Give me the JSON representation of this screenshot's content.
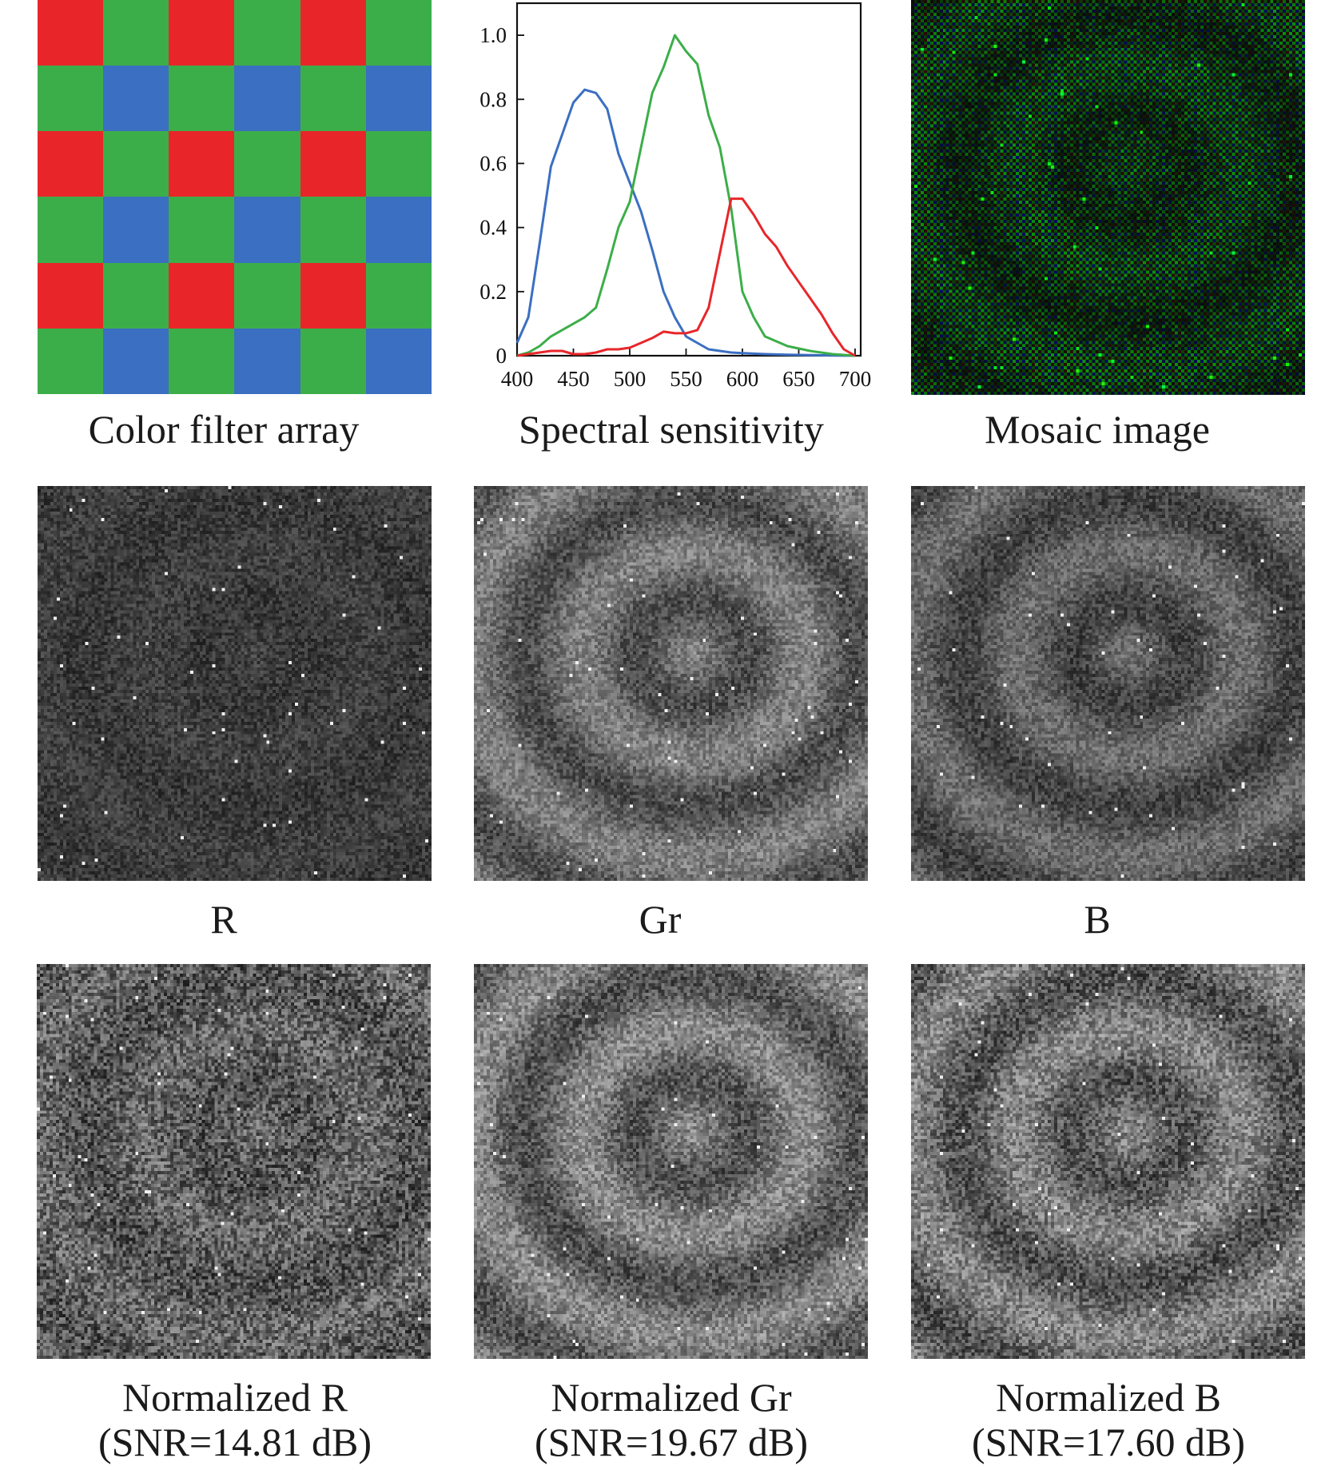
{
  "figure": {
    "colors": {
      "red": "#e8262a",
      "green": "#3cae49",
      "blue": "#3b6fc1"
    },
    "cfa": {
      "caption": "Color filter array",
      "rows": [
        [
          "R",
          "G",
          "R",
          "G",
          "R",
          "G"
        ],
        [
          "G",
          "B",
          "G",
          "B",
          "G",
          "B"
        ],
        [
          "R",
          "G",
          "R",
          "G",
          "R",
          "G"
        ],
        [
          "G",
          "B",
          "G",
          "B",
          "G",
          "B"
        ],
        [
          "R",
          "G",
          "R",
          "G",
          "R",
          "G"
        ],
        [
          "G",
          "B",
          "G",
          "B",
          "G",
          "B"
        ]
      ]
    },
    "mosaic": {
      "caption": "Mosaic image"
    },
    "channels": [
      {
        "caption": "R"
      },
      {
        "caption": "Gr"
      },
      {
        "caption": "B"
      }
    ],
    "normalized": [
      {
        "caption": "Normalized R",
        "snr": "(SNR=14.81 dB)"
      },
      {
        "caption": "Normalized Gr",
        "snr": "(SNR=19.67 dB)"
      },
      {
        "caption": "Normalized B",
        "snr": "(SNR=17.60 dB)"
      }
    ]
  },
  "chart_data": {
    "type": "line",
    "title": "Spectral sensitivity",
    "xlabel": "",
    "ylabel": "",
    "xlim": [
      400,
      705
    ],
    "ylim": [
      0,
      1.1
    ],
    "x_ticks": [
      "400",
      "450",
      "500",
      "550",
      "600",
      "650",
      "700"
    ],
    "y_ticks": [
      "0",
      "0.2",
      "0.4",
      "0.6",
      "0.8",
      "1.0"
    ],
    "grid": false,
    "series": [
      {
        "name": "blue",
        "color": "#3b6fc1",
        "x": [
          400,
          410,
          420,
          430,
          440,
          450,
          460,
          470,
          480,
          490,
          500,
          510,
          520,
          530,
          540,
          550,
          560,
          570,
          580,
          590,
          600,
          620,
          640,
          660,
          680,
          700
        ],
        "y": [
          0.04,
          0.12,
          0.35,
          0.59,
          0.69,
          0.79,
          0.83,
          0.82,
          0.77,
          0.63,
          0.54,
          0.45,
          0.33,
          0.2,
          0.12,
          0.06,
          0.04,
          0.02,
          0.015,
          0.01,
          0.008,
          0.005,
          0.003,
          0.002,
          0.001,
          0.0
        ]
      },
      {
        "name": "green",
        "color": "#3cae49",
        "x": [
          400,
          410,
          420,
          430,
          440,
          450,
          460,
          470,
          480,
          490,
          500,
          510,
          520,
          530,
          540,
          550,
          560,
          570,
          580,
          590,
          600,
          610,
          620,
          640,
          660,
          680,
          700
        ],
        "y": [
          0.0,
          0.01,
          0.03,
          0.06,
          0.08,
          0.1,
          0.12,
          0.15,
          0.27,
          0.4,
          0.48,
          0.65,
          0.82,
          0.9,
          1.0,
          0.95,
          0.91,
          0.75,
          0.65,
          0.46,
          0.2,
          0.12,
          0.06,
          0.03,
          0.015,
          0.005,
          0.0
        ]
      },
      {
        "name": "red",
        "color": "#e8262a",
        "x": [
          400,
          420,
          430,
          440,
          450,
          460,
          470,
          480,
          490,
          500,
          510,
          520,
          530,
          540,
          550,
          560,
          570,
          580,
          590,
          600,
          610,
          620,
          630,
          640,
          650,
          660,
          670,
          680,
          690,
          700
        ],
        "y": [
          0.0,
          0.01,
          0.015,
          0.015,
          0.005,
          0.005,
          0.01,
          0.02,
          0.02,
          0.025,
          0.04,
          0.055,
          0.075,
          0.07,
          0.07,
          0.08,
          0.15,
          0.32,
          0.49,
          0.49,
          0.44,
          0.38,
          0.34,
          0.28,
          0.23,
          0.18,
          0.13,
          0.07,
          0.02,
          0.0
        ]
      }
    ]
  }
}
